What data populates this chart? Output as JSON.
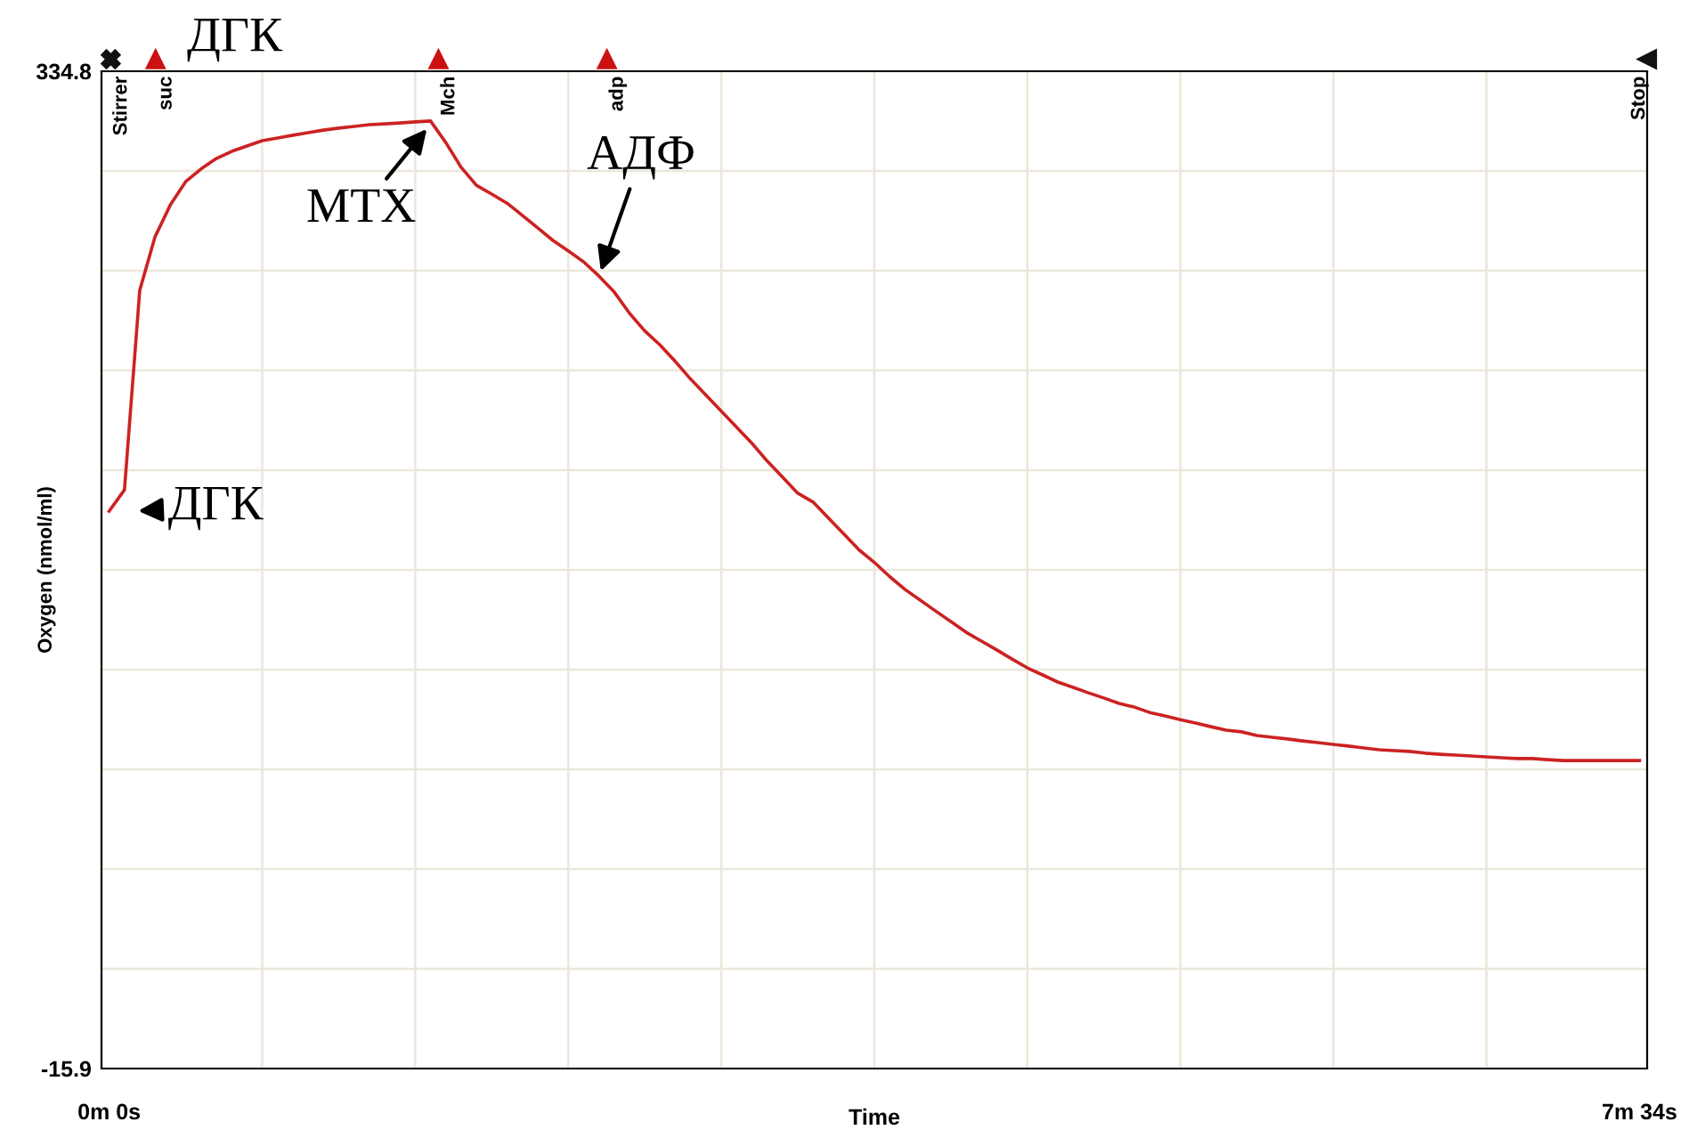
{
  "chart_data": {
    "type": "line",
    "xlabel": "Time",
    "ylabel": "Oxygen (nmol/ml)",
    "categories": [
      "0m 0s",
      null,
      null,
      null,
      null,
      null,
      null,
      null,
      null,
      null,
      null,
      null,
      null,
      null,
      null,
      null,
      null,
      null,
      null,
      null,
      null,
      null,
      null,
      null,
      null,
      null,
      null,
      null,
      null,
      null,
      null,
      null,
      null,
      null,
      null,
      null,
      null,
      null,
      null,
      null,
      null,
      null,
      null,
      null,
      null,
      null,
      null,
      null,
      null,
      null,
      null,
      null,
      null,
      null,
      null,
      null,
      null,
      null,
      null,
      null,
      null,
      null,
      null,
      null,
      null,
      null,
      null,
      null,
      null,
      null,
      null,
      null,
      null,
      null,
      null,
      null,
      null,
      null,
      null,
      null,
      null,
      null,
      null,
      null,
      null,
      null,
      null,
      null,
      null,
      null,
      null,
      null,
      null,
      null,
      null,
      null,
      null,
      null,
      null,
      null,
      "7m 34s"
    ],
    "series": [
      {
        "color": "#cc2222",
        "values": [
          180.1,
          187.6,
          257.8,
          276.6,
          287.8,
          296.0,
          300.4,
          304.1,
          306.6,
          308.5,
          310.4,
          311.3,
          312.3,
          313.2,
          314.1,
          314.8,
          315.4,
          316.0,
          316.3,
          316.6,
          317.0,
          317.3,
          309.7,
          301.0,
          294.7,
          291.6,
          288.4,
          284.1,
          279.7,
          275.3,
          271.6,
          267.8,
          262.8,
          257.2,
          249.7,
          243.5,
          238.5,
          232.7,
          226.5,
          220.9,
          215.3,
          209.6,
          204.0,
          197.7,
          192.1,
          186.4,
          183.3,
          177.7,
          172.1,
          166.5,
          162.1,
          157.1,
          152.6,
          148.8,
          145.0,
          141.3,
          137.5,
          134.4,
          131.3,
          128.1,
          125.0,
          122.5,
          120.0,
          118.1,
          116.2,
          114.4,
          112.5,
          111.2,
          109.3,
          108.1,
          106.8,
          105.6,
          104.3,
          103.1,
          102.5,
          101.2,
          100.6,
          100.0,
          99.3,
          98.7,
          98.1,
          97.5,
          96.8,
          96.2,
          95.9,
          95.6,
          95.0,
          94.6,
          94.3,
          94.0,
          93.7,
          93.4,
          93.1,
          93.1,
          92.7,
          92.4,
          92.4,
          92.4,
          92.4,
          92.4,
          92.4
        ]
      }
    ],
    "ylim": [
      -15.9,
      334.8
    ],
    "yticks": [
      -15.9,
      {
        "value": 19.17,
        "label": null
      },
      {
        "value": 54.24,
        "label": null
      },
      {
        "value": 89.31,
        "label": null
      },
      {
        "value": 124.38,
        "label": null
      },
      {
        "value": 159.45,
        "label": null
      },
      {
        "value": 194.52,
        "label": null
      },
      {
        "value": 229.59,
        "label": null
      },
      {
        "value": 264.66,
        "label": null
      },
      {
        "value": 299.73,
        "label": null
      },
      334.8
    ],
    "grid": true,
    "marker": "none",
    "line_style": "solid",
    "annotations": [
      "Stirrer",
      "suc",
      "Mch",
      "adp",
      "Stop",
      "ДГК",
      "МТХ",
      "АДФ",
      "ДГК"
    ]
  }
}
